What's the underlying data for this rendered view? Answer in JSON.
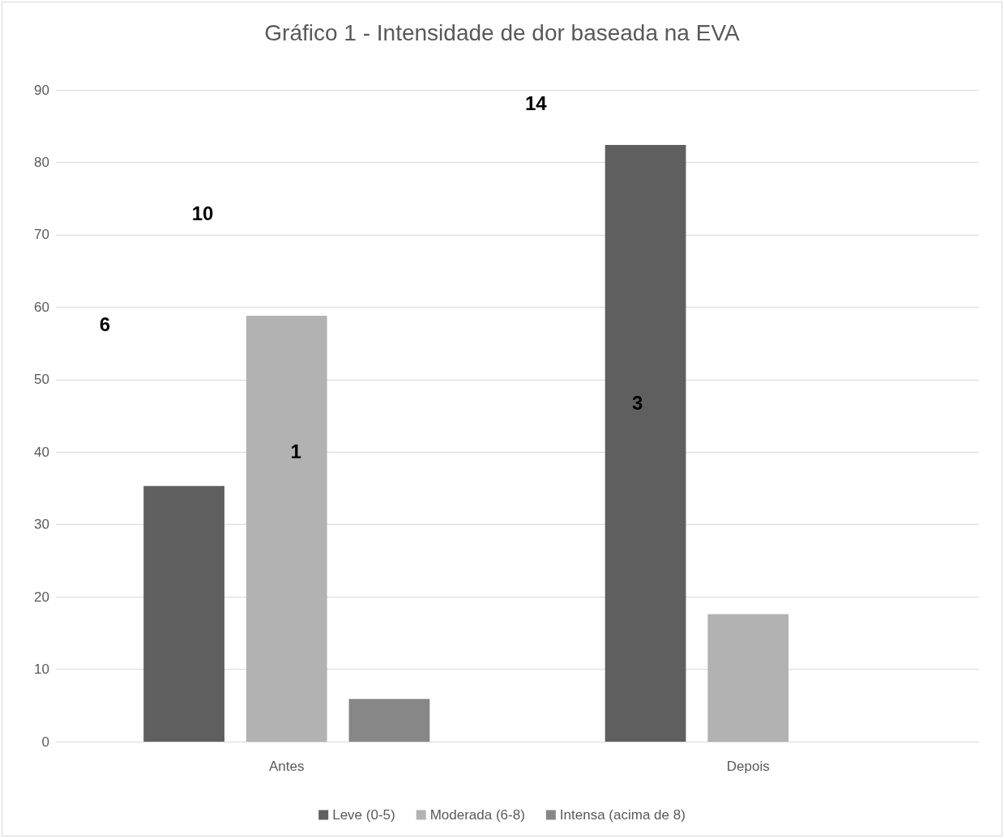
{
  "chart_data": {
    "type": "bar",
    "title": "Gráfico 1 - Intensidade de dor baseada na EVA",
    "categories": [
      "Antes",
      "Depois"
    ],
    "series": [
      {
        "name": "Leve (0-5)",
        "color": "#5f5f5f",
        "values": [
          35.3,
          82.4
        ]
      },
      {
        "name": "Moderada (6-8)",
        "color": "#b2b2b2",
        "values": [
          58.8,
          17.6
        ]
      },
      {
        "name": "Intensa (acima de 8)",
        "color": "#878787",
        "values": [
          5.9,
          0
        ]
      }
    ],
    "ylim": [
      0,
      90
    ],
    "yticks": [
      0,
      10,
      20,
      30,
      40,
      50,
      60,
      70,
      80,
      90
    ],
    "grid": "y",
    "legend": "bottom",
    "annotations": [
      "6",
      "10",
      "14",
      "1",
      "3"
    ]
  }
}
